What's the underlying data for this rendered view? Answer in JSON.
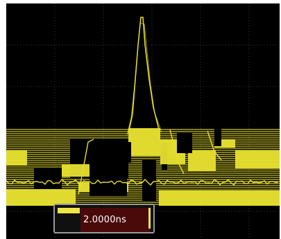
{
  "display": {
    "background_color": "#000000",
    "grid_color": "#3a3a3a",
    "trace_color": "#e8e030"
  },
  "cursor_readout": {
    "value": "2.0000ns",
    "box_color": "#4a0a0a",
    "border_color": "#9a9a9a"
  }
}
